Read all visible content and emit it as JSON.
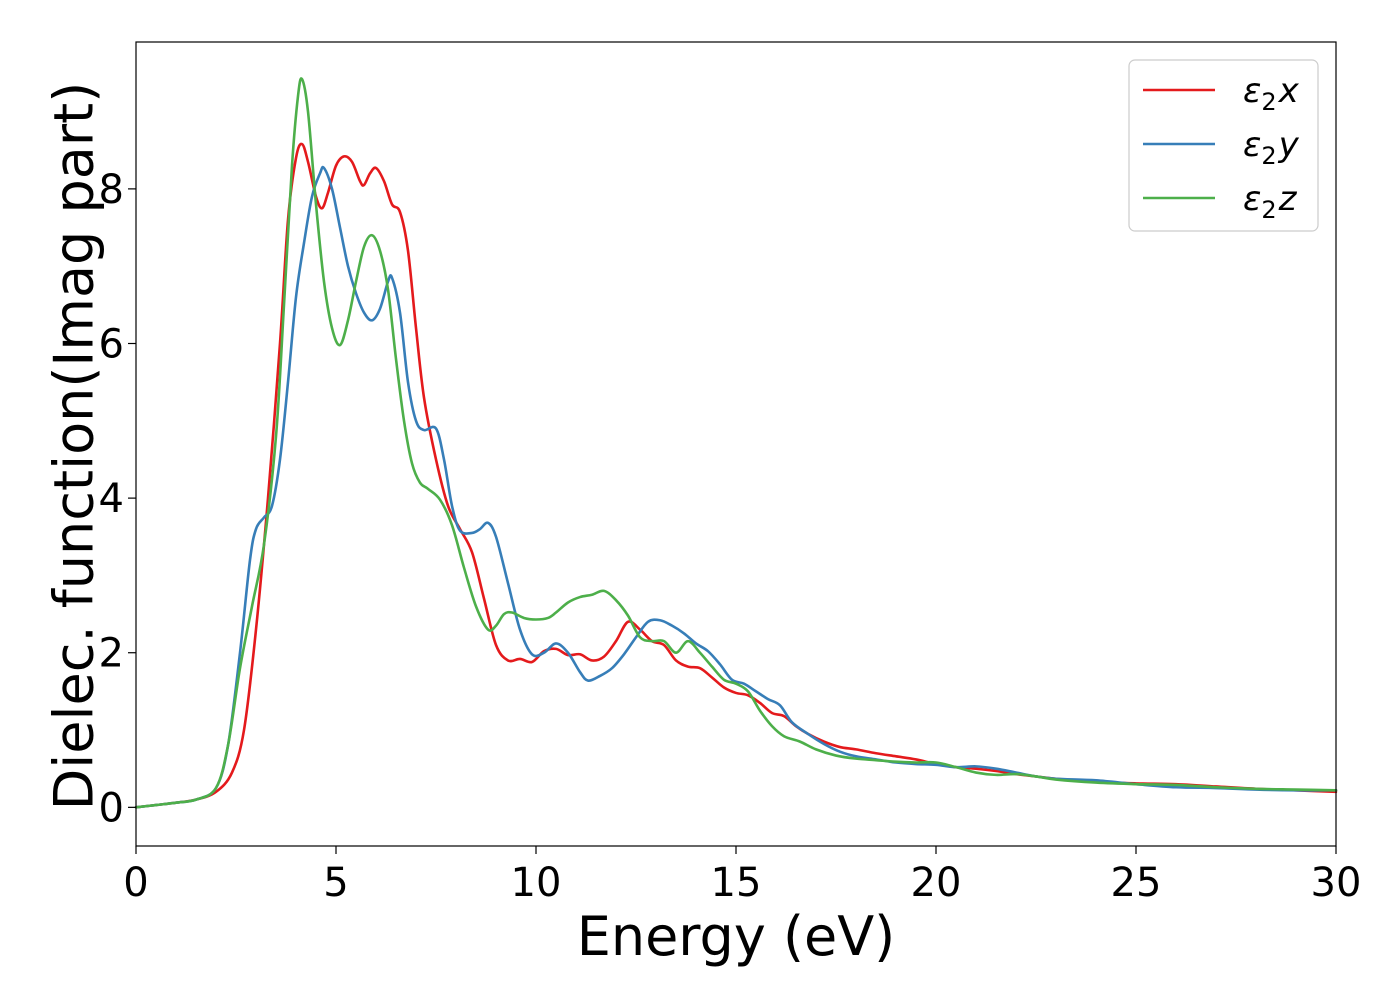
{
  "chart_data": {
    "type": "line",
    "title": "",
    "xlabel": "Energy (eV)",
    "ylabel": "Dielec. function(Imag part)",
    "xlim": [
      0,
      30
    ],
    "ylim": [
      -0.5,
      9.9
    ],
    "xticks": [
      0,
      5,
      10,
      15,
      20,
      25,
      30
    ],
    "yticks": [
      0,
      2,
      4,
      6,
      8
    ],
    "xtick_labels": [
      "0",
      "5",
      "10",
      "15",
      "20",
      "25",
      "30"
    ],
    "ytick_labels": [
      "0",
      "2",
      "4",
      "6",
      "8"
    ],
    "grid": false,
    "legend_position": "top-right",
    "legend_frame": true,
    "series": [
      {
        "name": "ε₂x",
        "legend_main": "ε",
        "legend_sub": "2",
        "legend_suffix": "x",
        "color": "#e41a1c",
        "points": [
          [
            0,
            0
          ],
          [
            0.5,
            0.03
          ],
          [
            1,
            0.06
          ],
          [
            1.5,
            0.1
          ],
          [
            2,
            0.2
          ],
          [
            2.4,
            0.45
          ],
          [
            2.7,
            1.0
          ],
          [
            3.0,
            2.3
          ],
          [
            3.3,
            4.0
          ],
          [
            3.6,
            6.0
          ],
          [
            3.8,
            7.6
          ],
          [
            4.0,
            8.4
          ],
          [
            4.15,
            8.58
          ],
          [
            4.3,
            8.35
          ],
          [
            4.5,
            7.9
          ],
          [
            4.65,
            7.75
          ],
          [
            4.8,
            7.95
          ],
          [
            5.0,
            8.3
          ],
          [
            5.2,
            8.42
          ],
          [
            5.4,
            8.35
          ],
          [
            5.6,
            8.1
          ],
          [
            5.7,
            8.05
          ],
          [
            5.85,
            8.2
          ],
          [
            6.0,
            8.27
          ],
          [
            6.2,
            8.1
          ],
          [
            6.4,
            7.8
          ],
          [
            6.6,
            7.7
          ],
          [
            6.8,
            7.2
          ],
          [
            7.0,
            6.2
          ],
          [
            7.2,
            5.3
          ],
          [
            7.5,
            4.5
          ],
          [
            7.8,
            3.9
          ],
          [
            8.1,
            3.6
          ],
          [
            8.4,
            3.3
          ],
          [
            8.7,
            2.7
          ],
          [
            9.0,
            2.1
          ],
          [
            9.3,
            1.9
          ],
          [
            9.6,
            1.92
          ],
          [
            9.9,
            1.88
          ],
          [
            10.2,
            2.02
          ],
          [
            10.5,
            2.05
          ],
          [
            10.8,
            1.97
          ],
          [
            11.1,
            1.98
          ],
          [
            11.4,
            1.9
          ],
          [
            11.7,
            1.95
          ],
          [
            12.0,
            2.15
          ],
          [
            12.3,
            2.4
          ],
          [
            12.6,
            2.3
          ],
          [
            12.9,
            2.15
          ],
          [
            13.2,
            2.1
          ],
          [
            13.5,
            1.9
          ],
          [
            13.8,
            1.82
          ],
          [
            14.1,
            1.8
          ],
          [
            14.4,
            1.68
          ],
          [
            14.7,
            1.55
          ],
          [
            15.0,
            1.48
          ],
          [
            15.3,
            1.45
          ],
          [
            15.6,
            1.35
          ],
          [
            15.9,
            1.22
          ],
          [
            16.2,
            1.18
          ],
          [
            16.5,
            1.05
          ],
          [
            16.8,
            0.95
          ],
          [
            17.2,
            0.85
          ],
          [
            17.6,
            0.78
          ],
          [
            18.0,
            0.75
          ],
          [
            18.5,
            0.7
          ],
          [
            19.0,
            0.66
          ],
          [
            19.5,
            0.62
          ],
          [
            20.0,
            0.56
          ],
          [
            20.5,
            0.52
          ],
          [
            21.0,
            0.5
          ],
          [
            21.5,
            0.47
          ],
          [
            22.0,
            0.43
          ],
          [
            22.5,
            0.4
          ],
          [
            23.0,
            0.37
          ],
          [
            24.0,
            0.33
          ],
          [
            25.0,
            0.31
          ],
          [
            26.0,
            0.3
          ],
          [
            27.0,
            0.27
          ],
          [
            28.0,
            0.24
          ],
          [
            29.0,
            0.22
          ],
          [
            30.0,
            0.2
          ]
        ]
      },
      {
        "name": "ε₂y",
        "legend_main": "ε",
        "legend_sub": "2",
        "legend_suffix": "y",
        "color": "#377eb8",
        "points": [
          [
            0,
            0
          ],
          [
            0.5,
            0.03
          ],
          [
            1,
            0.06
          ],
          [
            1.5,
            0.1
          ],
          [
            2,
            0.25
          ],
          [
            2.3,
            0.8
          ],
          [
            2.6,
            2.0
          ],
          [
            2.85,
            3.2
          ],
          [
            3.0,
            3.6
          ],
          [
            3.2,
            3.75
          ],
          [
            3.4,
            3.9
          ],
          [
            3.6,
            4.5
          ],
          [
            3.8,
            5.5
          ],
          [
            4.0,
            6.6
          ],
          [
            4.2,
            7.3
          ],
          [
            4.4,
            7.9
          ],
          [
            4.6,
            8.2
          ],
          [
            4.7,
            8.27
          ],
          [
            4.9,
            8.0
          ],
          [
            5.1,
            7.5
          ],
          [
            5.3,
            7.0
          ],
          [
            5.5,
            6.65
          ],
          [
            5.7,
            6.4
          ],
          [
            5.9,
            6.3
          ],
          [
            6.1,
            6.45
          ],
          [
            6.3,
            6.8
          ],
          [
            6.4,
            6.85
          ],
          [
            6.6,
            6.4
          ],
          [
            6.8,
            5.5
          ],
          [
            7.0,
            5.0
          ],
          [
            7.2,
            4.88
          ],
          [
            7.5,
            4.9
          ],
          [
            7.7,
            4.5
          ],
          [
            7.9,
            3.9
          ],
          [
            8.1,
            3.58
          ],
          [
            8.4,
            3.55
          ],
          [
            8.6,
            3.6
          ],
          [
            8.8,
            3.68
          ],
          [
            9.0,
            3.5
          ],
          [
            9.3,
            2.9
          ],
          [
            9.6,
            2.3
          ],
          [
            9.9,
            1.98
          ],
          [
            10.2,
            2.0
          ],
          [
            10.5,
            2.12
          ],
          [
            10.8,
            2.0
          ],
          [
            11.1,
            1.75
          ],
          [
            11.3,
            1.64
          ],
          [
            11.6,
            1.7
          ],
          [
            11.9,
            1.8
          ],
          [
            12.2,
            1.98
          ],
          [
            12.5,
            2.2
          ],
          [
            12.8,
            2.4
          ],
          [
            13.1,
            2.42
          ],
          [
            13.4,
            2.35
          ],
          [
            13.7,
            2.25
          ],
          [
            14.0,
            2.12
          ],
          [
            14.3,
            2.02
          ],
          [
            14.6,
            1.85
          ],
          [
            14.9,
            1.65
          ],
          [
            15.2,
            1.6
          ],
          [
            15.5,
            1.5
          ],
          [
            15.8,
            1.4
          ],
          [
            16.1,
            1.32
          ],
          [
            16.4,
            1.1
          ],
          [
            16.8,
            0.95
          ],
          [
            17.2,
            0.82
          ],
          [
            17.6,
            0.72
          ],
          [
            18.0,
            0.66
          ],
          [
            18.5,
            0.62
          ],
          [
            19.0,
            0.58
          ],
          [
            19.5,
            0.56
          ],
          [
            20.0,
            0.55
          ],
          [
            20.5,
            0.52
          ],
          [
            21.0,
            0.53
          ],
          [
            21.5,
            0.5
          ],
          [
            22.0,
            0.45
          ],
          [
            22.5,
            0.4
          ],
          [
            23.0,
            0.37
          ],
          [
            24.0,
            0.35
          ],
          [
            25.0,
            0.3
          ],
          [
            26.0,
            0.26
          ],
          [
            27.0,
            0.25
          ],
          [
            28.0,
            0.23
          ],
          [
            29.0,
            0.22
          ],
          [
            30.0,
            0.22
          ]
        ]
      },
      {
        "name": "ε₂z",
        "legend_main": "ε",
        "legend_sub": "2",
        "legend_suffix": "z",
        "color": "#4daf4a",
        "points": [
          [
            0,
            0
          ],
          [
            0.5,
            0.03
          ],
          [
            1,
            0.06
          ],
          [
            1.5,
            0.1
          ],
          [
            2,
            0.25
          ],
          [
            2.3,
            0.8
          ],
          [
            2.6,
            1.8
          ],
          [
            2.9,
            2.6
          ],
          [
            3.2,
            3.4
          ],
          [
            3.5,
            4.8
          ],
          [
            3.7,
            6.5
          ],
          [
            3.9,
            8.3
          ],
          [
            4.05,
            9.2
          ],
          [
            4.15,
            9.42
          ],
          [
            4.3,
            9.0
          ],
          [
            4.5,
            7.8
          ],
          [
            4.7,
            6.8
          ],
          [
            4.9,
            6.2
          ],
          [
            5.1,
            5.98
          ],
          [
            5.3,
            6.3
          ],
          [
            5.5,
            6.8
          ],
          [
            5.7,
            7.25
          ],
          [
            5.9,
            7.4
          ],
          [
            6.1,
            7.2
          ],
          [
            6.3,
            6.7
          ],
          [
            6.5,
            5.8
          ],
          [
            6.7,
            5.0
          ],
          [
            6.9,
            4.45
          ],
          [
            7.1,
            4.2
          ],
          [
            7.3,
            4.12
          ],
          [
            7.6,
            3.98
          ],
          [
            7.9,
            3.65
          ],
          [
            8.2,
            3.1
          ],
          [
            8.5,
            2.6
          ],
          [
            8.8,
            2.3
          ],
          [
            9.0,
            2.35
          ],
          [
            9.2,
            2.5
          ],
          [
            9.4,
            2.52
          ],
          [
            9.7,
            2.45
          ],
          [
            10.0,
            2.43
          ],
          [
            10.3,
            2.45
          ],
          [
            10.5,
            2.52
          ],
          [
            10.8,
            2.65
          ],
          [
            11.1,
            2.72
          ],
          [
            11.4,
            2.75
          ],
          [
            11.7,
            2.8
          ],
          [
            12.0,
            2.68
          ],
          [
            12.3,
            2.48
          ],
          [
            12.6,
            2.2
          ],
          [
            12.9,
            2.15
          ],
          [
            13.2,
            2.15
          ],
          [
            13.5,
            2.0
          ],
          [
            13.8,
            2.15
          ],
          [
            14.1,
            2.0
          ],
          [
            14.4,
            1.82
          ],
          [
            14.7,
            1.65
          ],
          [
            15.0,
            1.6
          ],
          [
            15.3,
            1.5
          ],
          [
            15.6,
            1.25
          ],
          [
            15.9,
            1.05
          ],
          [
            16.2,
            0.92
          ],
          [
            16.6,
            0.85
          ],
          [
            17.0,
            0.75
          ],
          [
            17.5,
            0.67
          ],
          [
            18.0,
            0.63
          ],
          [
            18.5,
            0.61
          ],
          [
            19.0,
            0.59
          ],
          [
            19.5,
            0.58
          ],
          [
            20.0,
            0.58
          ],
          [
            20.5,
            0.52
          ],
          [
            21.0,
            0.45
          ],
          [
            21.5,
            0.42
          ],
          [
            22.0,
            0.43
          ],
          [
            22.5,
            0.4
          ],
          [
            23.0,
            0.36
          ],
          [
            24.0,
            0.32
          ],
          [
            25.0,
            0.3
          ],
          [
            26.0,
            0.29
          ],
          [
            27.0,
            0.26
          ],
          [
            28.0,
            0.24
          ],
          [
            29.0,
            0.23
          ],
          [
            30.0,
            0.22
          ]
        ]
      }
    ]
  }
}
